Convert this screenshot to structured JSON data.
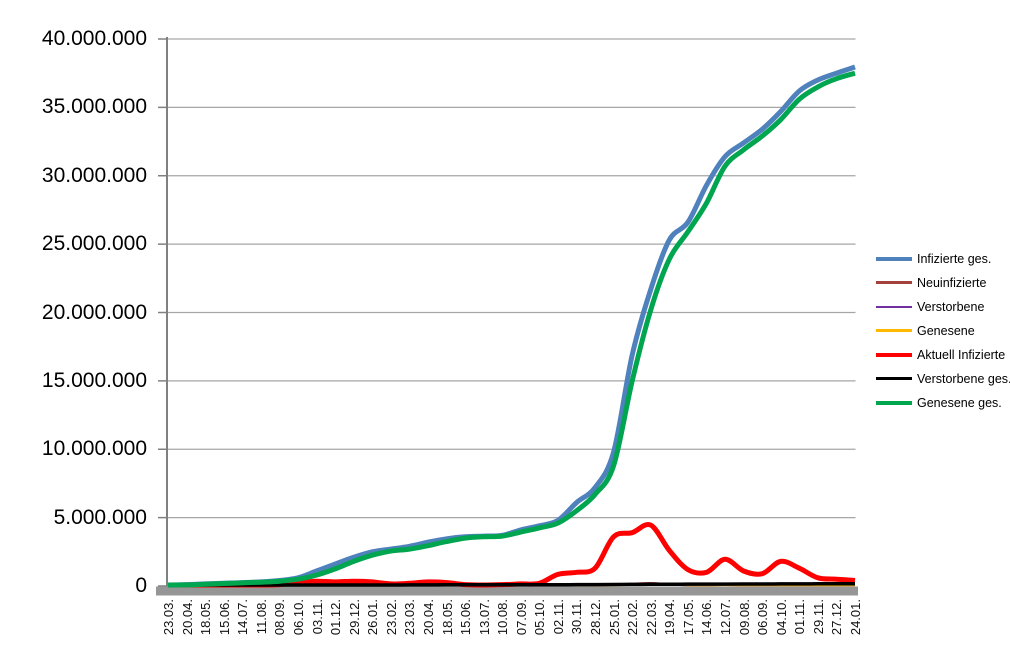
{
  "chart_data": {
    "type": "line",
    "title": "",
    "xlabel": "",
    "ylabel": "",
    "grid": "horizontal",
    "legend_position": "right",
    "categories": [
      "23.03.",
      "20.04.",
      "18.05.",
      "15.06.",
      "14.07.",
      "11.08.",
      "08.09.",
      "06.10.",
      "03.11.",
      "01.12.",
      "29.12.",
      "26.01.",
      "23.02.",
      "23.03.",
      "20.04.",
      "18.05.",
      "15.06.",
      "13.07.",
      "10.08.",
      "07.09.",
      "05.10.",
      "02.11.",
      "30.11.",
      "28.12.",
      "25.01.",
      "22.02.",
      "22.03.",
      "19.04.",
      "17.05.",
      "14.06.",
      "12.07.",
      "09.08.",
      "06.09.",
      "04.10.",
      "01.11.",
      "29.11.",
      "27.12.",
      "24.01."
    ],
    "y_axis": {
      "min": 0,
      "max": 40000000,
      "step": 5000000,
      "tick_labels": [
        "0",
        "5.000.000",
        "10.000.000",
        "15.000.000",
        "20.000.000",
        "25.000.000",
        "30.000.000",
        "35.000.000",
        "40.000.000"
      ]
    },
    "series": [
      {
        "name": "Infizierte ges.",
        "color": "#4F81BD",
        "width": 5,
        "values": [
          50000,
          100000,
          150000,
          200000,
          250000,
          300000,
          400000,
          600000,
          1100000,
          1600000,
          2100000,
          2500000,
          2700000,
          2900000,
          3200000,
          3450000,
          3600000,
          3650000,
          3700000,
          4100000,
          4400000,
          4800000,
          6100000,
          7200000,
          9800000,
          16900000,
          21700000,
          25300000,
          26600000,
          29300000,
          31400000,
          32400000,
          33400000,
          34700000,
          36200000,
          37000000,
          37500000,
          37950000
        ]
      },
      {
        "name": "Neuinfizierte",
        "color": "#A5413D",
        "width": 2.5,
        "values": [
          3000,
          4000,
          3000,
          2000,
          3000,
          4000,
          8000,
          15000,
          20000,
          18000,
          20000,
          15000,
          8000,
          12000,
          18000,
          12000,
          5000,
          2000,
          4000,
          8000,
          10000,
          30000,
          40000,
          30000,
          100000,
          150000,
          200000,
          120000,
          60000,
          70000,
          90000,
          50000,
          40000,
          70000,
          50000,
          30000,
          25000,
          20000
        ]
      },
      {
        "name": "Verstorbene",
        "color": "#7030A0",
        "width": 2,
        "values": [
          100,
          200,
          300,
          200,
          100,
          100,
          100,
          200,
          400,
          600,
          800,
          700,
          400,
          300,
          300,
          200,
          100,
          100,
          100,
          100,
          100,
          200,
          300,
          400,
          300,
          300,
          300,
          200,
          150,
          150,
          150,
          150,
          150,
          200,
          200,
          200,
          200,
          150
        ]
      },
      {
        "name": "Genesene",
        "color": "#FFB900",
        "width": 2.5,
        "values": [
          2000,
          3000,
          3000,
          2000,
          2000,
          3000,
          5000,
          10000,
          15000,
          18000,
          20000,
          18000,
          10000,
          10000,
          15000,
          15000,
          8000,
          3000,
          3000,
          6000,
          8000,
          15000,
          25000,
          30000,
          60000,
          100000,
          120000,
          120000,
          80000,
          60000,
          80000,
          60000,
          40000,
          50000,
          40000,
          25000,
          20000,
          20000
        ]
      },
      {
        "name": "Aktuell Infizierte",
        "color": "#FF0000",
        "width": 5,
        "values": [
          60000,
          60000,
          40000,
          30000,
          40000,
          50000,
          100000,
          250000,
          350000,
          300000,
          350000,
          300000,
          150000,
          200000,
          300000,
          250000,
          100000,
          50000,
          100000,
          150000,
          200000,
          850000,
          1000000,
          1300000,
          3600000,
          3900000,
          4450000,
          2600000,
          1200000,
          1000000,
          1950000,
          1100000,
          900000,
          1800000,
          1300000,
          600000,
          500000,
          400000
        ]
      },
      {
        "name": "Verstorbene ges.",
        "color": "#000000",
        "width": 3.5,
        "values": [
          2000,
          5000,
          8000,
          9000,
          9000,
          9000,
          9500,
          10000,
          12000,
          20000,
          35000,
          55000,
          70000,
          77000,
          82000,
          87000,
          90000,
          91000,
          92000,
          93000,
          94000,
          96000,
          100000,
          106000,
          112000,
          118000,
          124000,
          130000,
          136000,
          140000,
          142000,
          145000,
          148000,
          150000,
          154000,
          158000,
          161000,
          165000
        ]
      },
      {
        "name": "Genesene ges.",
        "color": "#00A550",
        "width": 5,
        "values": [
          20000,
          80000,
          130000,
          180000,
          230000,
          280000,
          350000,
          500000,
          800000,
          1250000,
          1800000,
          2250000,
          2550000,
          2700000,
          2950000,
          3250000,
          3500000,
          3600000,
          3650000,
          3950000,
          4250000,
          4600000,
          5500000,
          6700000,
          8800000,
          15000000,
          20200000,
          23900000,
          25900000,
          28000000,
          30700000,
          31900000,
          32900000,
          34100000,
          35600000,
          36500000,
          37100000,
          37500000
        ]
      }
    ]
  },
  "style_colors": {
    "gridline": "#A6A6A6",
    "axis_line": "#808080",
    "axis_bar": "#969696",
    "background": "#FFFFFF",
    "label_color": "#000000"
  }
}
